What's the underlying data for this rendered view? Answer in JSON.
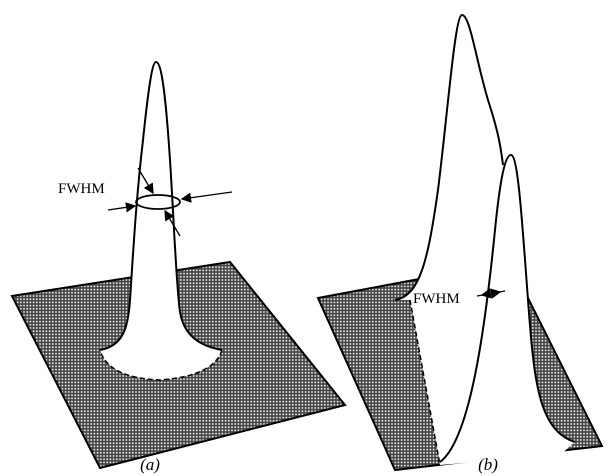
{
  "panels": [
    {
      "label": "(a)",
      "annotation": "FWHM"
    },
    {
      "label": "(b)",
      "annotation": "FWHM"
    }
  ]
}
